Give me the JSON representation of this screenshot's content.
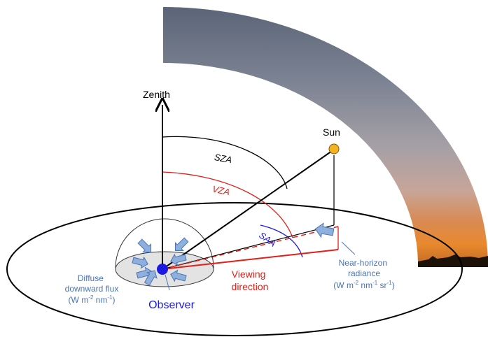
{
  "labels": {
    "zenith": "Zenith",
    "sun": "Sun",
    "sza": "SZA",
    "vza": "VZA",
    "saa": "SAA",
    "viewing_line1": "Viewing",
    "viewing_line2": "direction",
    "observer": "Observer",
    "diffuse_line1": "Diffuse",
    "diffuse_line2": "downward flux",
    "diffuse_unit_a": "(W m",
    "diffuse_unit_sup1": "-2",
    "diffuse_unit_b": " nm",
    "diffuse_unit_sup2": "-1",
    "diffuse_unit_c": ")",
    "radiance_line1": "Near-horizon",
    "radiance_line2": "radiance",
    "radiance_unit_a": "(W m",
    "radiance_unit_sup1": "-2",
    "radiance_unit_b": " nm",
    "radiance_unit_sup2": "-1",
    "radiance_unit_c": " sr",
    "radiance_unit_sup3": "-1",
    "radiance_unit_d": ")"
  },
  "colors": {
    "black": "#000000",
    "red": "#e0201a",
    "blue": "#1a1ae0",
    "steel": "#4a74b8",
    "arrow_fill": "#8fb0dc",
    "sun_fill": "#f3b321",
    "dome_fill": "#e3e3e3"
  }
}
